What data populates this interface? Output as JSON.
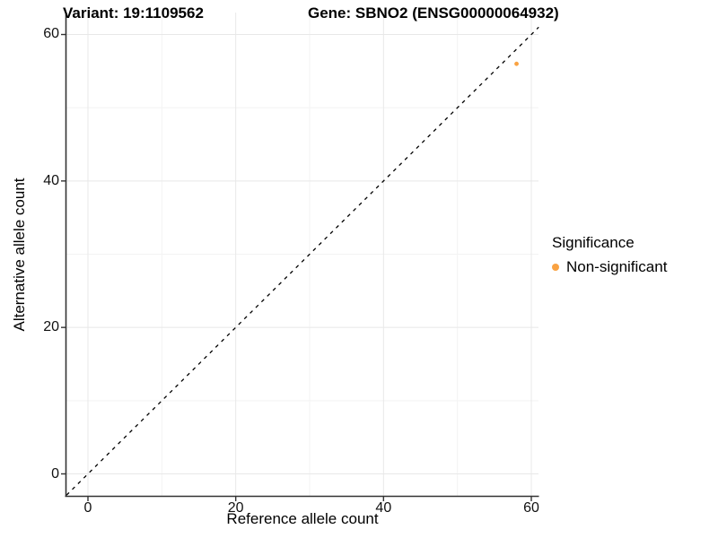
{
  "chart_data": {
    "type": "scatter",
    "titles": {
      "variant": "Variant: 19:1109562",
      "gene": "Gene: SBNO2 (ENSG00000064932)"
    },
    "xlabel": "Reference allele count",
    "ylabel": "Alternative allele count",
    "x_ticks": [
      0,
      20,
      40,
      60
    ],
    "y_ticks": [
      0,
      20,
      40,
      60
    ],
    "x_minor_ticks": [
      10,
      30,
      50
    ],
    "y_minor_ticks": [
      10,
      30,
      50
    ],
    "xlim": [
      -2.9,
      61
    ],
    "ylim": [
      -3,
      63
    ],
    "grid": true,
    "background": "#ffffff",
    "grid_major_color": "#e8e8e8",
    "grid_minor_color": "#f3f3f3",
    "axis_line_color": "#333333",
    "reference_line": {
      "type": "abline",
      "slope": 1,
      "intercept": 0,
      "style": "dashed",
      "color": "#000000"
    },
    "points": [
      {
        "x": 58,
        "y": 56,
        "group": "Non-significant"
      }
    ],
    "point_color": "#F9A242",
    "legend": {
      "position": "right",
      "title": "Significance",
      "items": [
        {
          "label": "Non-significant",
          "color": "#F9A242"
        }
      ]
    }
  }
}
